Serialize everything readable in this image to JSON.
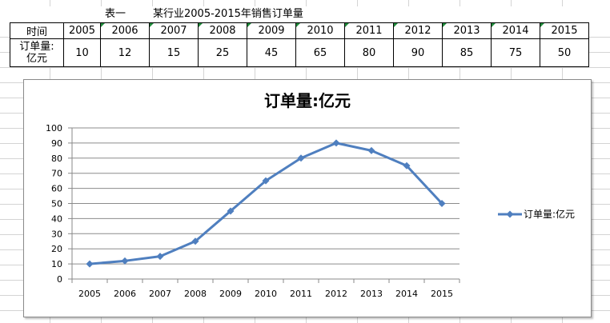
{
  "caption": {
    "label": "表一",
    "title": "某行业2005-2015年销售订单量"
  },
  "table": {
    "row1_header": "时间",
    "row2_header_line1": "订单量:",
    "row2_header_line2": "亿元",
    "years": [
      "2005",
      "2006",
      "2007",
      "2008",
      "2009",
      "2010",
      "2011",
      "2012",
      "2013",
      "2014",
      "2015"
    ],
    "values": [
      "10",
      "12",
      "15",
      "25",
      "45",
      "65",
      "80",
      "90",
      "85",
      "75",
      "50"
    ]
  },
  "chart_data": {
    "type": "line",
    "title": "订单量:亿元",
    "x": [
      "2005",
      "2006",
      "2007",
      "2008",
      "2009",
      "2010",
      "2011",
      "2012",
      "2013",
      "2014",
      "2015"
    ],
    "series": [
      {
        "name": "订单量:亿元",
        "values": [
          10,
          12,
          15,
          25,
          45,
          65,
          80,
          90,
          85,
          75,
          50
        ]
      }
    ],
    "ylim": [
      0,
      100
    ],
    "yticks": [
      "0",
      "10",
      "20",
      "30",
      "40",
      "50",
      "60",
      "70",
      "80",
      "90",
      "100"
    ],
    "grid": true,
    "legend": "right",
    "line_color": "#4f7fbf"
  }
}
